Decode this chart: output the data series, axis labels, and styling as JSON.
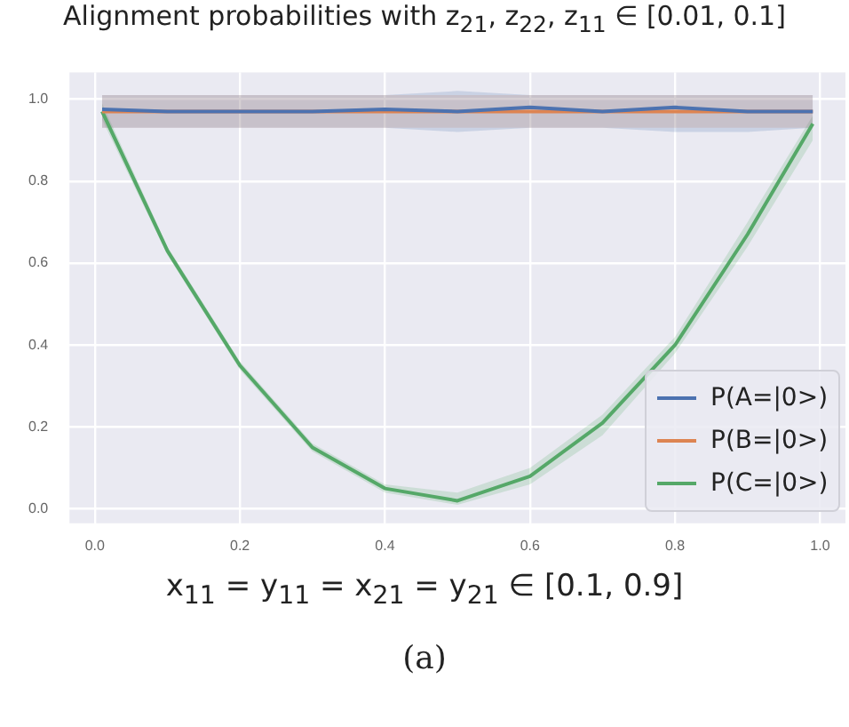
{
  "chart_data": {
    "type": "line",
    "title": "Alignment probabilities with z$_{21}$, z$_{22}$, z$_{11}$ ∈ [0.01, 0.1]",
    "xlabel": "x$_{11}$ = y$_{11}$ = x$_{21}$ = y$_{21}$ ∈ [0.1, 0.9]",
    "annotations": [
      "(a)"
    ],
    "x": [
      0.01,
      0.1,
      0.2,
      0.3,
      0.4,
      0.5,
      0.6,
      0.7,
      0.8,
      0.9,
      0.99
    ],
    "series": [
      {
        "name": "P(A=|0>)",
        "color": "#4c72b0",
        "values": [
          0.975,
          0.97,
          0.97,
          0.97,
          0.975,
          0.97,
          0.98,
          0.97,
          0.98,
          0.97,
          0.97
        ],
        "lower": [
          0.93,
          0.93,
          0.93,
          0.93,
          0.93,
          0.92,
          0.93,
          0.93,
          0.92,
          0.92,
          0.93
        ],
        "upper": [
          1.01,
          1.01,
          1.01,
          1.01,
          1.01,
          1.02,
          1.01,
          1.01,
          1.01,
          1.01,
          1.01
        ]
      },
      {
        "name": "P(B=|0>)",
        "color": "#dd8452",
        "values": [
          0.97,
          0.97,
          0.97,
          0.97,
          0.97,
          0.97,
          0.97,
          0.97,
          0.97,
          0.97,
          0.97
        ],
        "lower": [
          0.93,
          0.93,
          0.93,
          0.93,
          0.93,
          0.93,
          0.93,
          0.93,
          0.93,
          0.93,
          0.93
        ],
        "upper": [
          1.01,
          1.01,
          1.01,
          1.01,
          1.01,
          1.01,
          1.01,
          1.01,
          1.01,
          1.01,
          1.01
        ]
      },
      {
        "name": "P(C=|0>)",
        "color": "#55a868",
        "values": [
          0.97,
          0.63,
          0.35,
          0.15,
          0.05,
          0.02,
          0.08,
          0.21,
          0.4,
          0.67,
          0.94
        ],
        "lower": [
          0.95,
          0.62,
          0.34,
          0.14,
          0.04,
          0.01,
          0.06,
          0.18,
          0.38,
          0.64,
          0.9
        ],
        "upper": [
          0.99,
          0.64,
          0.36,
          0.16,
          0.06,
          0.04,
          0.1,
          0.23,
          0.42,
          0.7,
          0.96
        ]
      }
    ],
    "xlim": [
      -0.035,
      1.035
    ],
    "ylim": [
      -0.035,
      1.065
    ],
    "xticks": [
      {
        "value": 0,
        "label": "0.0"
      },
      {
        "value": 0.2,
        "label": "0.2"
      },
      {
        "value": 0.4,
        "label": "0.4"
      },
      {
        "value": 0.6,
        "label": "0.6"
      },
      {
        "value": 0.8,
        "label": "0.8"
      },
      {
        "value": 1,
        "label": "1.0"
      }
    ],
    "yticks": [
      {
        "value": 0,
        "label": "0.0"
      },
      {
        "value": 0.2,
        "label": "0.2"
      },
      {
        "value": 0.4,
        "label": "0.4"
      },
      {
        "value": 0.6,
        "label": "0.6"
      },
      {
        "value": 0.8,
        "label": "0.8"
      },
      {
        "value": 1,
        "label": "1.0"
      }
    ],
    "grid": true,
    "legend": "bottom right",
    "marker": "none",
    "line_style": "solid"
  }
}
